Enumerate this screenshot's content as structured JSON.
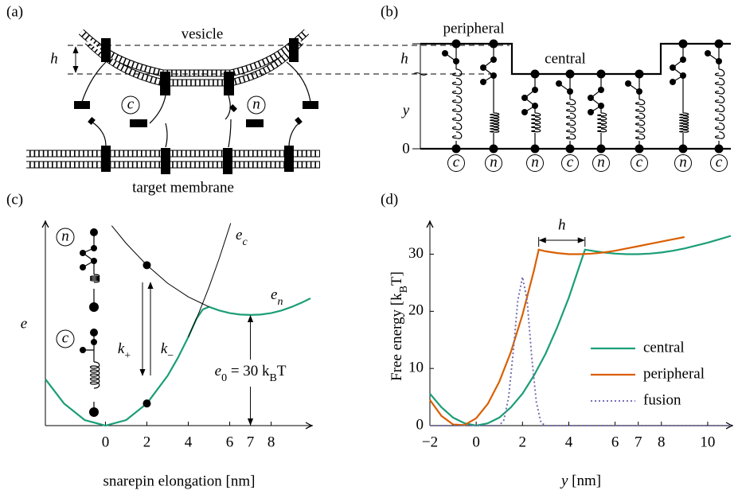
{
  "panel_labels": [
    "(a)",
    "(b)",
    "(c)",
    "(d)"
  ],
  "diagram_a": {
    "vesicle": "vesicle",
    "h": "h",
    "c": "c",
    "n": "n",
    "target": "target membrane"
  },
  "diagram_b": {
    "peripheral": "peripheral",
    "central": "central",
    "h": "h",
    "y": "y",
    "zero": "0",
    "pins": [
      "c",
      "n",
      "n",
      "c",
      "n",
      "c",
      "n",
      "c"
    ]
  },
  "chart_data": [
    {
      "type": "line",
      "ylabel": "e",
      "xlabel": "snarepin elongation [nm]",
      "xlim": [
        -2.9,
        9.9
      ],
      "ylim": [
        0,
        55
      ],
      "xticks": [
        0,
        2,
        4,
        6,
        7,
        8
      ],
      "series": [
        {
          "color": "#1b9e77",
          "x": [
            -2.9,
            -2,
            -1,
            0,
            1,
            2,
            3,
            3.5,
            4,
            4.4,
            4.7,
            5,
            5.5,
            6,
            6.5,
            7,
            7.5,
            8,
            8.5,
            9,
            9.5,
            9.9
          ],
          "values": [
            12.6,
            6,
            1.5,
            0,
            1.5,
            6,
            13.5,
            18.4,
            24,
            29,
            31.5,
            32.2,
            31.2,
            30.5,
            30.1,
            30,
            30.1,
            30.5,
            31.2,
            32.2,
            33.4,
            34.5
          ]
        },
        {
          "color": "#000000",
          "x": [
            0.3,
            1,
            2,
            3,
            4,
            5
          ],
          "values": [
            54.2,
            49.4,
            43.5,
            38.6,
            34.9,
            32.2
          ]
        },
        {
          "color": "#000000",
          "x": [
            4,
            4.5,
            5,
            5.5,
            6.05
          ],
          "values": [
            24,
            30.4,
            37.5,
            45.4,
            54.9
          ]
        }
      ],
      "points": {
        "x": [
          2,
          2
        ],
        "values": [
          43.5,
          6
        ]
      },
      "annotations": {
        "e_c": [
          {
            "t": "e",
            "italic": true
          },
          {
            "t": "c",
            "sub": true,
            "italic": true
          }
        ],
        "e_n": [
          {
            "t": "e",
            "italic": true
          },
          {
            "t": "n",
            "sub": true,
            "italic": true
          }
        ]
      },
      "states": [
        "n",
        "c"
      ],
      "rates": {
        "k_plus": [
          {
            "t": "k",
            "italic": true
          },
          {
            "t": "+",
            "sub": true
          }
        ],
        "k_minus": [
          {
            "t": "k",
            "italic": true
          },
          {
            "t": "−",
            "sub": true
          }
        ]
      },
      "e0": {
        "x": 7,
        "value": 30,
        "label": [
          {
            "t": "e",
            "italic": true
          },
          {
            "t": "0",
            "sub": true
          },
          {
            "t": " = 30 k"
          },
          {
            "t": "B",
            "sub": true
          },
          {
            "t": "T"
          }
        ]
      }
    },
    {
      "type": "line",
      "xlabel": [
        {
          "t": "y",
          "italic": true
        },
        {
          "t": " [nm]"
        }
      ],
      "ylabel": [
        {
          "t": "Free energy [k"
        },
        {
          "t": "B",
          "sub": true
        },
        {
          "t": "T]"
        }
      ],
      "xlim": [
        -2,
        11
      ],
      "ylim": [
        0,
        35.5
      ],
      "xticks": [
        {
          "value": -2,
          "label": "−2"
        },
        0,
        2,
        4,
        6,
        7,
        8,
        10
      ],
      "yticks": [
        0,
        10,
        20,
        30
      ],
      "legend": "lower right",
      "series": [
        {
          "name": "central",
          "color": "#1b9e77",
          "x": [
            -2,
            -1.5,
            -1,
            -0.5,
            0,
            0.5,
            1,
            1.5,
            2,
            2.5,
            3,
            3.5,
            4,
            4.5,
            4.7,
            5,
            5.5,
            6,
            6.5,
            7,
            7.5,
            8,
            8.5,
            9,
            9.5,
            10,
            10.5,
            11
          ],
          "values": [
            5.6,
            3.2,
            1.4,
            0.4,
            0,
            0.4,
            1.4,
            3.2,
            5.6,
            8.8,
            12.6,
            17.2,
            22.4,
            28.4,
            30.8,
            30.6,
            30.3,
            30.1,
            30,
            30,
            30.1,
            30.3,
            30.6,
            31,
            31.5,
            32,
            32.6,
            33.2
          ]
        },
        {
          "name": "peripheral",
          "color": "#d95f02",
          "x": [
            -2,
            -1.5,
            -1,
            -0.5,
            0,
            0.5,
            1,
            1.5,
            2,
            2.5,
            2.7,
            3,
            3.5,
            4,
            4.5,
            5,
            5.5,
            6,
            6.5,
            7,
            7.5,
            8,
            8.5,
            9
          ],
          "values": [
            4.5,
            1.7,
            0.2,
            0.1,
            1.3,
            3.8,
            7.7,
            12.9,
            19.4,
            27.2,
            30.8,
            30.5,
            30.2,
            30,
            30,
            30.1,
            30.3,
            30.6,
            31,
            31.4,
            31.8,
            32.2,
            32.6,
            33
          ]
        },
        {
          "name": "fusion",
          "color": "#7570b3",
          "dash": "dotted",
          "x": [
            -2,
            1,
            1.2,
            1.4,
            1.6,
            1.8,
            2,
            2.2,
            2.4,
            2.6,
            2.8,
            3,
            11
          ],
          "values": [
            0,
            0,
            1,
            5,
            13,
            22,
            26,
            22,
            12,
            4,
            0.5,
            0,
            0
          ]
        }
      ],
      "h_annotation": {
        "label": "h",
        "from": 2.7,
        "to": 4.7
      }
    }
  ]
}
